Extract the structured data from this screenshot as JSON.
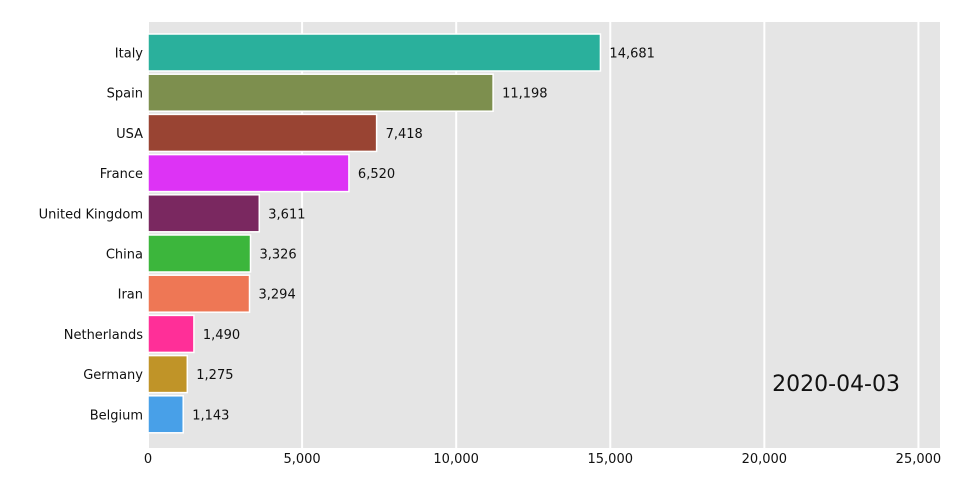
{
  "chart_data": {
    "type": "bar",
    "orientation": "horizontal",
    "date": "2020-04-03",
    "categories": [
      "Italy",
      "Spain",
      "USA",
      "France",
      "United Kingdom",
      "China",
      "Iran",
      "Netherlands",
      "Germany",
      "Belgium"
    ],
    "values": [
      14681,
      11198,
      7418,
      6520,
      3611,
      3326,
      3294,
      1490,
      1275,
      1143
    ],
    "value_labels": [
      "14,681",
      "11,198",
      "7,418",
      "6,520",
      "3,611",
      "3,326",
      "3,294",
      "1,490",
      "1,275",
      "1,143"
    ],
    "colors": [
      "#2ab09c",
      "#7d8f4e",
      "#994433",
      "#dd33f5",
      "#7a2860",
      "#3cb63c",
      "#ee7755",
      "#ff2f98",
      "#c09428",
      "#48a0e8"
    ],
    "xlim": [
      0,
      25700
    ],
    "xticks": [
      0,
      5000,
      10000,
      15000,
      20000,
      25000
    ],
    "xtick_labels": [
      "0",
      "5,000",
      "10,000",
      "15,000",
      "20,000",
      "25,000"
    ],
    "grid": true,
    "background": "#e5e5e5",
    "title": "",
    "xlabel": "",
    "ylabel": ""
  }
}
